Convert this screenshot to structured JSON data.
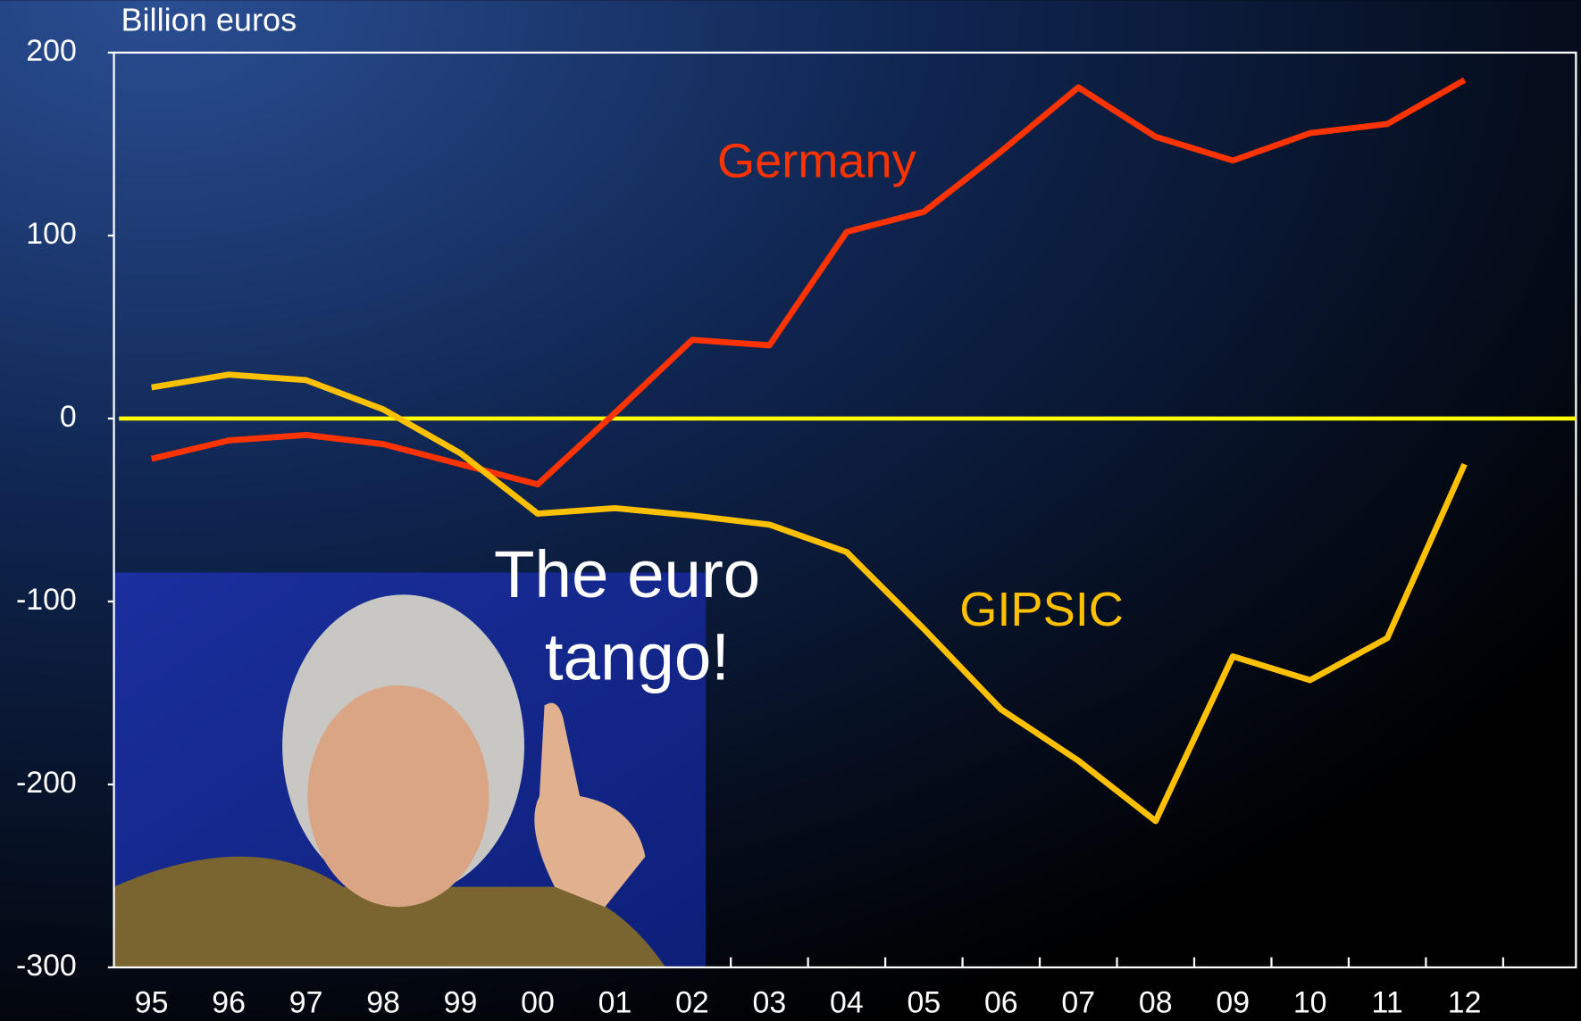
{
  "chart_data": {
    "type": "line",
    "title": "Billion euros",
    "categories": [
      "95",
      "96",
      "97",
      "98",
      "99",
      "00",
      "01",
      "02",
      "03",
      "04",
      "05",
      "06",
      "07",
      "08",
      "09",
      "10",
      "11",
      "12"
    ],
    "series": [
      {
        "name": "Germany",
        "color": "#ff3300",
        "values": [
          -22,
          -12,
          -9,
          -14,
          -25,
          -36,
          3,
          43,
          40,
          102,
          113,
          146,
          181,
          154,
          141,
          156,
          161,
          185
        ]
      },
      {
        "name": "GIPSIC",
        "color": "#ffc000",
        "values": [
          17,
          24,
          21,
          5,
          -19,
          -52,
          -49,
          -53,
          -58,
          -73,
          -115,
          -159,
          -187,
          -220,
          -130,
          -143,
          -120,
          -25
        ]
      }
    ],
    "ylim": [
      -300,
      200
    ],
    "yticks": [
      -300,
      -200,
      -100,
      0,
      100,
      200
    ],
    "annotation": [
      "The euro",
      "tango!"
    ]
  }
}
